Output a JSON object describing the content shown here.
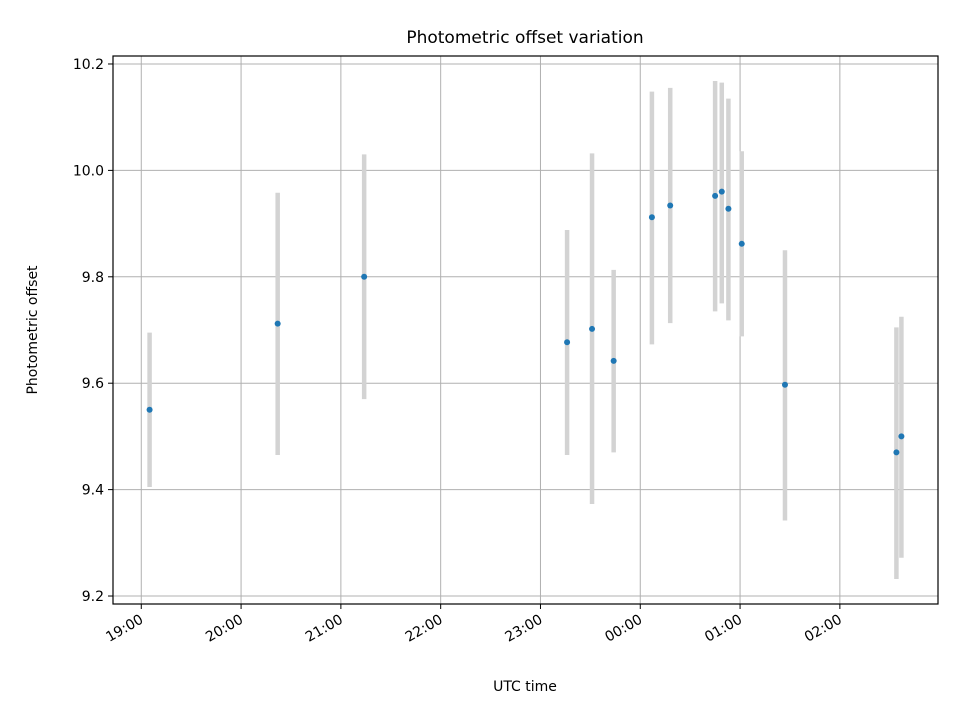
{
  "chart_data": {
    "type": "scatter",
    "title": "Photometric offset variation",
    "xlabel": "UTC time",
    "ylabel": "Photometric offset",
    "x_tick_labels": [
      "19:00",
      "20:00",
      "21:00",
      "22:00",
      "23:00",
      "00:00",
      "01:00",
      "02:00"
    ],
    "x_tick_times": [
      "19:00",
      "20:00",
      "21:00",
      "22:00",
      "23:00",
      "24:00",
      "25:00",
      "26:00"
    ],
    "xlim": [
      "18:43",
      "26:59"
    ],
    "y_tick_labels": [
      "9.2",
      "9.4",
      "9.6",
      "9.8",
      "10.0",
      "10.2"
    ],
    "y_tick_values": [
      9.2,
      9.4,
      9.6,
      9.8,
      10.0,
      10.2
    ],
    "ylim": [
      9.185,
      10.215
    ],
    "grid": true,
    "point_color": "#1f77b4",
    "errorbar_color": "#d3d3d3",
    "points": [
      {
        "time": "19:05",
        "y": 9.55,
        "low": 9.405,
        "high": 9.695
      },
      {
        "time": "20:22",
        "y": 9.712,
        "low": 9.465,
        "high": 9.958
      },
      {
        "time": "21:14",
        "y": 9.8,
        "low": 9.57,
        "high": 10.03
      },
      {
        "time": "23:16",
        "y": 9.677,
        "low": 9.465,
        "high": 9.888
      },
      {
        "time": "23:31",
        "y": 9.702,
        "low": 9.373,
        "high": 10.032
      },
      {
        "time": "23:44",
        "y": 9.642,
        "low": 9.47,
        "high": 9.813
      },
      {
        "time": "24:07",
        "y": 9.912,
        "low": 9.673,
        "high": 10.148
      },
      {
        "time": "24:18",
        "y": 9.934,
        "low": 9.713,
        "high": 10.155
      },
      {
        "time": "24:45",
        "y": 9.952,
        "low": 9.735,
        "high": 10.168
      },
      {
        "time": "24:49",
        "y": 9.96,
        "low": 9.75,
        "high": 10.165
      },
      {
        "time": "24:53",
        "y": 9.928,
        "low": 9.718,
        "high": 10.135
      },
      {
        "time": "25:01",
        "y": 9.862,
        "low": 9.688,
        "high": 10.036
      },
      {
        "time": "25:27",
        "y": 9.597,
        "low": 9.342,
        "high": 9.85
      },
      {
        "time": "26:34",
        "y": 9.47,
        "low": 9.232,
        "high": 9.705
      },
      {
        "time": "26:37",
        "y": 9.5,
        "low": 9.272,
        "high": 9.725
      }
    ]
  }
}
